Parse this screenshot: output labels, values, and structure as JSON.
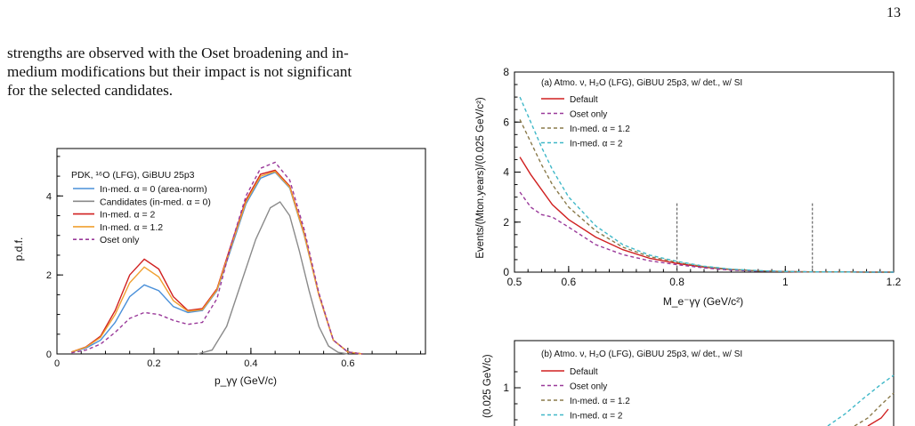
{
  "page_number": "13",
  "body_text": [
    "strengths are observed with the Oset broadening and in-",
    "medium modifications but their impact is not significant",
    "for the selected candidates."
  ],
  "chart_data": [
    {
      "type": "line",
      "title": "PDK, ¹⁶O (LFG), GiBUU 25p3",
      "xlabel": "p_γγ (GeV/c)",
      "ylabel": "p.d.f.",
      "xlim": [
        0,
        0.76
      ],
      "ylim": [
        0,
        5.2
      ],
      "xticks": [
        "0",
        "0.2",
        "0.4",
        "0.6"
      ],
      "yticks": [
        "0",
        "2",
        "4"
      ],
      "legend_position": "top-left",
      "colors": {
        "blue": "#4a90d9",
        "gray": "#8a8a8a",
        "red": "#d02020",
        "orange": "#f0a030",
        "purple": "#9a3a9a"
      },
      "series": [
        {
          "name": "In-med. α = 0 (area-norm)",
          "style": "solid",
          "color": "#4a90d9",
          "x": [
            0.03,
            0.06,
            0.09,
            0.12,
            0.15,
            0.18,
            0.21,
            0.24,
            0.27,
            0.3,
            0.33,
            0.36,
            0.39,
            0.42,
            0.45,
            0.48,
            0.51,
            0.54,
            0.57,
            0.6,
            0.63
          ],
          "y": [
            0.05,
            0.15,
            0.35,
            0.8,
            1.45,
            1.75,
            1.6,
            1.2,
            1.05,
            1.1,
            1.6,
            2.7,
            3.8,
            4.45,
            4.6,
            4.2,
            3.0,
            1.5,
            0.35,
            0.05,
            0
          ]
        },
        {
          "name": "Candidates (in-med. α = 0)",
          "style": "solid",
          "color": "#8a8a8a",
          "x": [
            0.29,
            0.32,
            0.35,
            0.38,
            0.41,
            0.44,
            0.46,
            0.48,
            0.5,
            0.52,
            0.54,
            0.56,
            0.58,
            0.6
          ],
          "y": [
            0,
            0.1,
            0.7,
            1.8,
            2.9,
            3.7,
            3.85,
            3.5,
            2.6,
            1.6,
            0.7,
            0.2,
            0.04,
            0
          ]
        },
        {
          "name": "In-med. α = 2",
          "style": "solid",
          "color": "#d02020",
          "x": [
            0.03,
            0.06,
            0.09,
            0.12,
            0.15,
            0.18,
            0.21,
            0.24,
            0.27,
            0.3,
            0.33,
            0.36,
            0.39,
            0.42,
            0.45,
            0.48,
            0.51,
            0.54,
            0.57,
            0.6,
            0.63
          ],
          "y": [
            0.05,
            0.18,
            0.45,
            1.1,
            2.0,
            2.4,
            2.15,
            1.45,
            1.1,
            1.15,
            1.65,
            2.8,
            3.9,
            4.55,
            4.65,
            4.25,
            3.05,
            1.5,
            0.35,
            0.05,
            0
          ]
        },
        {
          "name": "In-med. α = 1.2",
          "style": "solid",
          "color": "#f0a030",
          "x": [
            0.03,
            0.06,
            0.09,
            0.12,
            0.15,
            0.18,
            0.21,
            0.24,
            0.27,
            0.3,
            0.33,
            0.36,
            0.39,
            0.42,
            0.45,
            0.48,
            0.51,
            0.54,
            0.57,
            0.6,
            0.63
          ],
          "y": [
            0.05,
            0.17,
            0.42,
            1.0,
            1.8,
            2.2,
            1.95,
            1.35,
            1.08,
            1.12,
            1.62,
            2.75,
            3.85,
            4.5,
            4.62,
            4.22,
            3.02,
            1.5,
            0.35,
            0.05,
            0
          ]
        },
        {
          "name": "Oset only",
          "style": "dashed",
          "color": "#9a3a9a",
          "x": [
            0.03,
            0.06,
            0.09,
            0.12,
            0.15,
            0.18,
            0.21,
            0.24,
            0.27,
            0.3,
            0.33,
            0.36,
            0.39,
            0.42,
            0.45,
            0.48,
            0.51,
            0.54,
            0.57,
            0.6,
            0.63
          ],
          "y": [
            0.03,
            0.1,
            0.25,
            0.55,
            0.9,
            1.05,
            1.0,
            0.85,
            0.75,
            0.8,
            1.4,
            2.8,
            4.0,
            4.7,
            4.85,
            4.4,
            3.15,
            1.55,
            0.35,
            0.05,
            0
          ]
        }
      ]
    },
    {
      "type": "line",
      "title": "(a) Atmo. ν, H₂O (LFG), GiBUU 25p3, w/ det., w/ SI",
      "xlabel": "M_e⁻γγ (GeV/c²)",
      "ylabel": "Events/(Mton.years)/(0.025 GeV/c²)",
      "xlim": [
        0.5,
        1.2
      ],
      "ylim": [
        0,
        8
      ],
      "xticks": [
        "0.5",
        "0.6",
        "0.8",
        "1",
        "1.2"
      ],
      "yticks": [
        "0",
        "2",
        "4",
        "6",
        "8"
      ],
      "legend_position": "top-left",
      "cut_lines_x": [
        0.8,
        1.05
      ],
      "series": [
        {
          "name": "Default",
          "style": "solid",
          "color": "#d02020",
          "x": [
            0.51,
            0.53,
            0.55,
            0.57,
            0.6,
            0.65,
            0.7,
            0.75,
            0.8,
            0.85,
            0.9,
            0.95,
            1.0,
            1.05,
            1.1,
            1.15,
            1.2
          ],
          "y": [
            4.6,
            3.9,
            3.3,
            2.7,
            2.1,
            1.4,
            0.9,
            0.55,
            0.35,
            0.2,
            0.1,
            0.05,
            0.02,
            0.01,
            0.01,
            0,
            0
          ]
        },
        {
          "name": "Oset only",
          "style": "dashed",
          "color": "#9a3a9a",
          "x": [
            0.51,
            0.53,
            0.55,
            0.57,
            0.6,
            0.65,
            0.7,
            0.75,
            0.8,
            0.85,
            0.9,
            0.95,
            1.0,
            1.05,
            1.1,
            1.15,
            1.2
          ],
          "y": [
            3.2,
            2.6,
            2.3,
            2.2,
            1.8,
            1.1,
            0.7,
            0.45,
            0.3,
            0.17,
            0.08,
            0.04,
            0.02,
            0.01,
            0.01,
            0,
            0
          ]
        },
        {
          "name": "In-med. α = 1.2",
          "style": "dashed",
          "color": "#8a7a4a",
          "x": [
            0.51,
            0.53,
            0.55,
            0.57,
            0.6,
            0.65,
            0.7,
            0.75,
            0.8,
            0.85,
            0.9,
            0.95,
            1.0,
            1.05,
            1.1,
            1.15,
            1.2
          ],
          "y": [
            6.1,
            5.2,
            4.3,
            3.5,
            2.6,
            1.65,
            1.0,
            0.62,
            0.4,
            0.22,
            0.11,
            0.05,
            0.02,
            0.01,
            0.01,
            0,
            0
          ]
        },
        {
          "name": "In-med. α = 2",
          "style": "dashed",
          "color": "#40b8c8",
          "x": [
            0.51,
            0.53,
            0.55,
            0.57,
            0.6,
            0.65,
            0.7,
            0.75,
            0.8,
            0.85,
            0.9,
            0.95,
            1.0,
            1.05,
            1.1,
            1.15,
            1.2
          ],
          "y": [
            7.0,
            6.0,
            5.0,
            4.1,
            3.0,
            1.85,
            1.1,
            0.68,
            0.43,
            0.24,
            0.12,
            0.06,
            0.03,
            0.01,
            0.01,
            0,
            0
          ]
        }
      ]
    },
    {
      "type": "line",
      "title": "(b) Atmo. ν, H₂O (LFG), GiBUU 25p3, w/ det., w/ SI",
      "ylabel": "(0.025 GeV/c)",
      "yticks": [
        "1"
      ],
      "legend_position": "top-left",
      "series": [
        {
          "name": "Default",
          "style": "solid",
          "color": "#d02020"
        },
        {
          "name": "Oset only",
          "style": "dashed",
          "color": "#9a3a9a"
        },
        {
          "name": "In-med. α = 1.2",
          "style": "dashed",
          "color": "#8a7a4a"
        },
        {
          "name": "In-med. α = 2",
          "style": "dashed",
          "color": "#40b8c8"
        }
      ]
    }
  ]
}
